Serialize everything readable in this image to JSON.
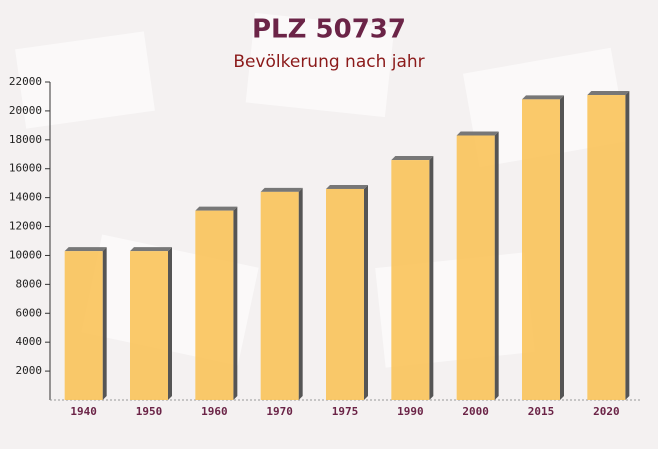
{
  "chart_data": {
    "type": "bar",
    "title": "PLZ 50737",
    "subtitle": "Bevölkerung nach jahr",
    "categories": [
      "1940",
      "1950",
      "1960",
      "1970",
      "1975",
      "1990",
      "2000",
      "2015",
      "2020"
    ],
    "values": [
      10300,
      10300,
      13100,
      14400,
      14600,
      16600,
      18300,
      20800,
      21100
    ],
    "color": "#f9c35a",
    "ylim": [
      0,
      22000
    ],
    "yticks": [
      2000,
      4000,
      6000,
      8000,
      10000,
      12000,
      14000,
      16000,
      18000,
      20000,
      22000
    ],
    "grid": false
  }
}
